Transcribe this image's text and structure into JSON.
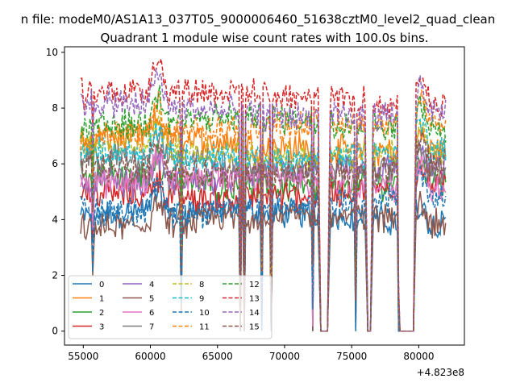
{
  "chart_data": {
    "type": "line",
    "suptitle": "n file: modeM0/AS1A13_037T05_9000006460_51638cztM0_level2_quad_clean",
    "title": "Quadrant 1 module wise count rates with 100.0s bins.",
    "xlabel": "",
    "ylabel": "",
    "x_offset_label": "+4.823e8",
    "xlim": [
      53600,
      83400
    ],
    "ylim": [
      -0.5,
      10.2
    ],
    "xticks": [
      55000,
      60000,
      65000,
      70000,
      75000,
      80000
    ],
    "xtick_labels": [
      "55000",
      "60000",
      "65000",
      "70000",
      "75000",
      "80000"
    ],
    "yticks": [
      0,
      2,
      4,
      6,
      8,
      10
    ],
    "ytick_labels": [
      "0",
      "2",
      "4",
      "6",
      "8",
      "10"
    ],
    "grid": false,
    "legend_position": "lower-left",
    "legend_columns": 4,
    "x_range_data": [
      54800,
      82000
    ],
    "bin_seconds": 100,
    "gaps": [
      {
        "start": 72700,
        "end": 73200
      },
      {
        "start": 76200,
        "end": 76400
      },
      {
        "start": 78600,
        "end": 79600
      }
    ],
    "dips": [
      {
        "x": 55700,
        "depth": 1.8
      },
      {
        "x": 62300,
        "depth": 3.2
      },
      {
        "x": 66700,
        "depth": 7.5
      },
      {
        "x": 67000,
        "depth": 8.0
      },
      {
        "x": 68300,
        "depth": 4.5
      },
      {
        "x": 69000,
        "depth": 6.0
      },
      {
        "x": 72100,
        "depth": 4.5
      },
      {
        "x": 75300,
        "depth": 4.5
      },
      {
        "x": 78500,
        "depth": 5.0
      }
    ],
    "series": [
      {
        "name": "0",
        "color": "#1f77b4",
        "dash": false,
        "level": 4.1
      },
      {
        "name": "1",
        "color": "#ff7f0e",
        "dash": false,
        "level": 6.7
      },
      {
        "name": "2",
        "color": "#2ca02c",
        "dash": false,
        "level": 5.4
      },
      {
        "name": "3",
        "color": "#d62728",
        "dash": false,
        "level": 5.0
      },
      {
        "name": "4",
        "color": "#9467bd",
        "dash": false,
        "level": 5.6
      },
      {
        "name": "5",
        "color": "#8c564b",
        "dash": false,
        "level": 3.9
      },
      {
        "name": "6",
        "color": "#e377c2",
        "dash": false,
        "level": 5.3
      },
      {
        "name": "7",
        "color": "#7f7f7f",
        "dash": false,
        "level": 6.0
      },
      {
        "name": "8",
        "color": "#bcbd22",
        "dash": true,
        "level": 6.5
      },
      {
        "name": "9",
        "color": "#17becf",
        "dash": true,
        "level": 6.4
      },
      {
        "name": "10",
        "color": "#1f77b4",
        "dash": true,
        "level": 4.5
      },
      {
        "name": "11",
        "color": "#ff7f0e",
        "dash": true,
        "level": 7.2
      },
      {
        "name": "12",
        "color": "#2ca02c",
        "dash": true,
        "level": 7.4
      },
      {
        "name": "13",
        "color": "#d62728",
        "dash": true,
        "level": 8.4
      },
      {
        "name": "14",
        "color": "#9467bd",
        "dash": true,
        "level": 7.9
      },
      {
        "name": "15",
        "color": "#8c564b",
        "dash": true,
        "level": 5.8
      }
    ]
  }
}
